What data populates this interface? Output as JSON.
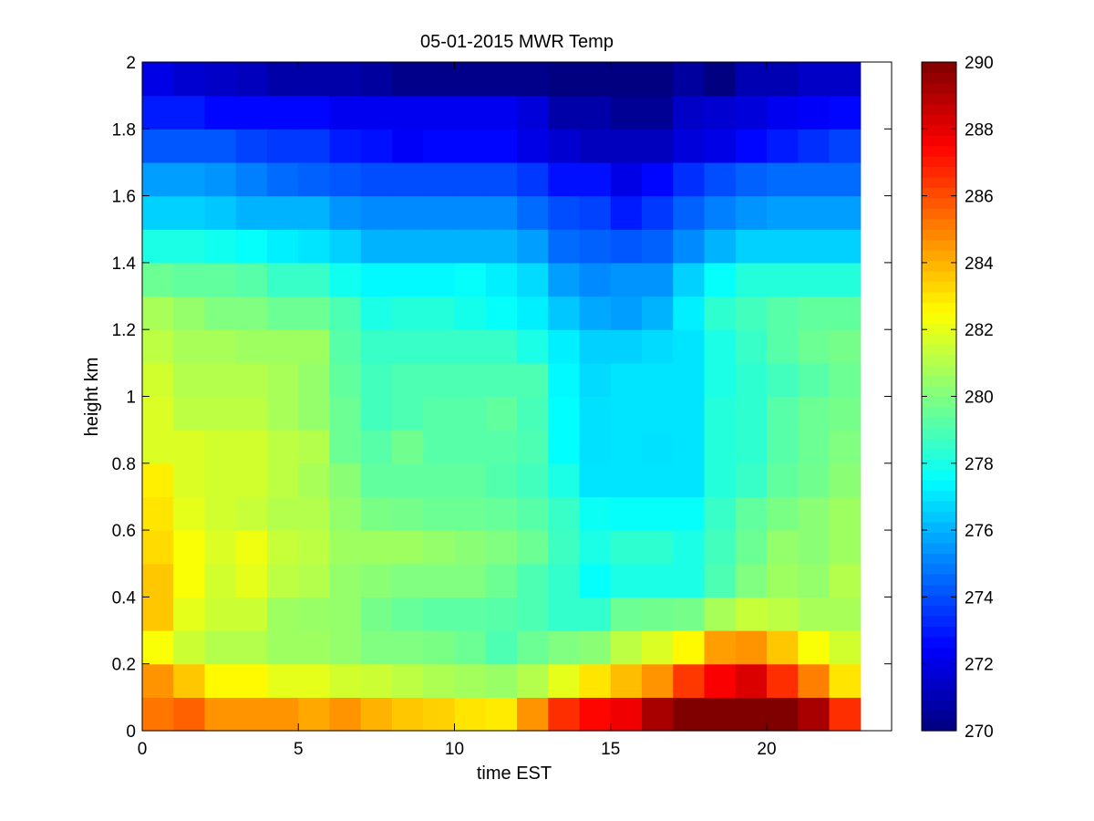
{
  "chart_data": {
    "type": "heatmap",
    "title": "05-01-2015 MWR Temp",
    "xlabel": "time EST",
    "ylabel": "height km",
    "xlim": [
      0,
      24
    ],
    "ylim": [
      0,
      2
    ],
    "x_ticks": [
      "0",
      "5",
      "10",
      "15",
      "20"
    ],
    "y_ticks": [
      "0",
      "0.2",
      "0.4",
      "0.6",
      "0.8",
      "1",
      "1.2",
      "1.4",
      "1.6",
      "1.8",
      "2"
    ],
    "colormap": "jet",
    "clim": [
      270,
      290
    ],
    "colorbar_ticks": [
      "270",
      "272",
      "274",
      "276",
      "278",
      "280",
      "282",
      "284",
      "286",
      "288",
      "290"
    ],
    "x": [
      0,
      1,
      2,
      3,
      4,
      5,
      6,
      7,
      8,
      9,
      10,
      11,
      12,
      13,
      14,
      15,
      16,
      17,
      18,
      19,
      20,
      21,
      22,
      23
    ],
    "y": [
      0.0,
      0.1,
      0.2,
      0.3,
      0.4,
      0.5,
      0.6,
      0.7,
      0.8,
      0.9,
      1.0,
      1.1,
      1.2,
      1.3,
      1.4,
      1.5,
      1.6,
      1.7,
      1.8,
      1.9,
      2.0
    ],
    "values": [
      [
        285.2,
        285.6,
        284.6,
        284.6,
        284.6,
        284.2,
        284.6,
        284.0,
        283.6,
        283.4,
        283.0,
        282.9,
        284.6,
        286.6,
        287.4,
        287.8,
        289.2,
        290.0,
        290.0,
        290.0,
        290.0,
        289.2,
        286.6,
        285.6
      ],
      [
        284.6,
        283.6,
        282.6,
        282.6,
        282.0,
        282.0,
        281.6,
        281.5,
        281.2,
        280.9,
        280.7,
        280.5,
        281.0,
        282.0,
        283.0,
        283.8,
        284.6,
        286.4,
        287.6,
        288.2,
        286.6,
        285.0,
        283.0,
        282.0
      ],
      [
        282.4,
        281.5,
        281.0,
        281.0,
        280.6,
        280.6,
        280.4,
        280.0,
        280.0,
        279.9,
        279.6,
        279.0,
        279.6,
        280.0,
        280.2,
        281.2,
        281.8,
        282.6,
        284.4,
        284.6,
        283.6,
        282.4,
        281.6,
        281.4
      ],
      [
        283.6,
        282.0,
        281.5,
        281.5,
        280.6,
        280.5,
        280.4,
        279.8,
        279.5,
        279.3,
        279.3,
        279.2,
        279.0,
        278.5,
        278.5,
        279.6,
        279.7,
        279.8,
        280.8,
        281.4,
        281.2,
        280.8,
        280.8,
        280.8
      ],
      [
        283.6,
        282.4,
        281.6,
        282.0,
        281.2,
        281.0,
        280.4,
        280.2,
        280.0,
        280.0,
        280.0,
        279.6,
        279.0,
        278.5,
        277.6,
        278.0,
        278.0,
        278.0,
        279.0,
        280.0,
        280.6,
        280.4,
        281.0,
        281.0
      ],
      [
        283.2,
        282.4,
        281.8,
        282.2,
        281.4,
        281.2,
        280.6,
        280.6,
        280.6,
        280.4,
        280.2,
        280.0,
        279.6,
        278.7,
        278.0,
        278.4,
        278.4,
        278.0,
        278.8,
        279.6,
        280.4,
        280.2,
        280.6,
        280.8
      ],
      [
        283.0,
        282.0,
        281.6,
        281.4,
        281.0,
        281.0,
        280.4,
        279.9,
        279.8,
        279.6,
        279.6,
        279.5,
        279.2,
        278.6,
        277.7,
        277.6,
        277.6,
        277.6,
        278.6,
        279.4,
        279.9,
        280.2,
        280.6,
        280.6
      ],
      [
        282.8,
        281.8,
        281.6,
        281.6,
        281.2,
        280.8,
        280.2,
        279.4,
        279.4,
        279.4,
        279.4,
        279.1,
        278.8,
        278.0,
        277.0,
        277.0,
        277.0,
        277.0,
        278.2,
        278.6,
        279.4,
        279.7,
        280.2,
        280.4
      ],
      [
        281.8,
        281.8,
        281.6,
        281.6,
        281.2,
        281.0,
        279.6,
        279.2,
        279.7,
        279.2,
        279.2,
        279.2,
        279.0,
        277.5,
        276.9,
        277.0,
        276.9,
        277.0,
        278.2,
        278.4,
        279.2,
        279.6,
        280.0,
        280.4
      ],
      [
        281.8,
        281.2,
        281.2,
        281.2,
        280.8,
        280.4,
        279.6,
        278.8,
        279.0,
        279.2,
        279.2,
        279.4,
        278.9,
        277.5,
        276.9,
        277.0,
        277.0,
        277.0,
        278.2,
        278.4,
        279.2,
        279.6,
        279.8,
        280.2
      ],
      [
        281.6,
        281.0,
        281.0,
        281.0,
        280.8,
        280.4,
        279.4,
        278.8,
        279.0,
        279.0,
        279.0,
        279.0,
        279.0,
        277.4,
        276.8,
        277.0,
        277.0,
        277.0,
        278.0,
        278.4,
        278.8,
        279.2,
        279.6,
        279.8
      ],
      [
        281.2,
        280.8,
        280.8,
        280.6,
        280.6,
        280.6,
        279.2,
        278.6,
        278.6,
        278.6,
        278.6,
        278.6,
        278.0,
        277.2,
        276.6,
        276.6,
        276.8,
        277.0,
        278.0,
        278.6,
        279.2,
        279.6,
        279.8,
        279.6
      ],
      [
        280.8,
        280.4,
        280.0,
        280.0,
        279.6,
        279.6,
        279.0,
        278.0,
        278.2,
        278.2,
        277.9,
        277.6,
        277.2,
        276.4,
        275.8,
        275.6,
        276.0,
        277.2,
        278.4,
        278.8,
        279.2,
        279.4,
        279.4,
        279.2
      ],
      [
        279.6,
        279.4,
        279.4,
        279.2,
        278.6,
        278.6,
        277.8,
        277.4,
        277.4,
        277.4,
        277.6,
        277.2,
        276.8,
        275.6,
        275.2,
        275.4,
        275.4,
        276.6,
        277.6,
        278.2,
        278.2,
        278.2,
        278.2,
        278.0
      ],
      [
        278.0,
        278.0,
        277.8,
        277.6,
        277.2,
        277.0,
        276.6,
        276.0,
        276.0,
        276.0,
        276.0,
        276.0,
        275.6,
        274.6,
        274.4,
        274.2,
        274.4,
        275.2,
        276.0,
        276.6,
        276.6,
        276.6,
        276.6,
        276.4
      ],
      [
        276.6,
        276.6,
        276.4,
        276.0,
        276.0,
        276.0,
        275.4,
        275.2,
        275.2,
        275.2,
        275.2,
        275.2,
        274.6,
        274.0,
        273.8,
        273.0,
        273.6,
        274.4,
        275.0,
        275.4,
        275.6,
        275.6,
        275.6,
        275.6
      ],
      [
        275.6,
        275.6,
        275.4,
        275.0,
        274.6,
        274.4,
        274.2,
        274.0,
        274.0,
        274.0,
        274.0,
        274.0,
        273.6,
        272.8,
        272.8,
        272.0,
        272.6,
        273.4,
        274.0,
        274.4,
        274.6,
        274.6,
        274.6,
        274.6
      ],
      [
        274.2,
        274.2,
        274.2,
        273.8,
        273.6,
        273.6,
        273.0,
        272.8,
        272.4,
        272.6,
        272.6,
        272.6,
        272.0,
        271.6,
        271.2,
        271.2,
        271.2,
        271.8,
        272.0,
        272.6,
        273.0,
        273.4,
        273.8,
        273.8
      ],
      [
        273.0,
        273.0,
        272.6,
        272.6,
        272.6,
        272.6,
        272.2,
        272.2,
        272.2,
        272.2,
        272.2,
        272.2,
        271.8,
        270.8,
        270.8,
        270.4,
        270.4,
        271.4,
        271.6,
        271.8,
        272.2,
        272.4,
        272.6,
        272.6
      ],
      [
        272.0,
        271.6,
        271.4,
        271.2,
        270.8,
        270.8,
        270.8,
        270.6,
        270.2,
        270.2,
        270.2,
        270.2,
        270.2,
        270.0,
        270.0,
        270.0,
        270.0,
        270.6,
        270.0,
        271.0,
        271.0,
        271.4,
        271.4,
        271.4
      ],
      [
        271.0,
        271.0,
        271.0,
        271.0,
        270.6,
        270.6,
        270.6,
        270.6,
        270.4,
        270.4,
        270.4,
        270.6,
        270.4,
        270.2,
        270.2,
        270.2,
        270.2,
        270.2,
        270.2,
        270.4,
        270.4,
        270.4,
        270.8,
        270.8
      ]
    ]
  }
}
